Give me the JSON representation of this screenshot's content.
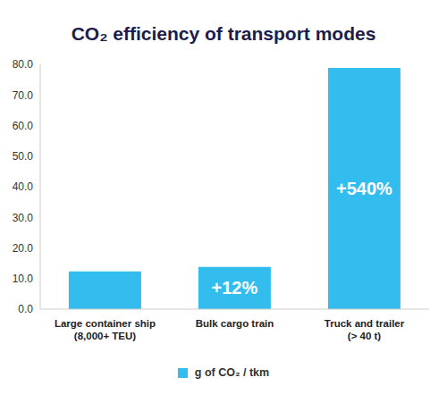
{
  "chart_data": {
    "type": "bar",
    "title": "CO₂ efficiency of transport modes",
    "categories": [
      "Large container ship (8,000+ TEU)",
      "Bulk cargo train",
      "Truck and trailer (> 40 t)"
    ],
    "series": [
      {
        "name": "g of CO₂ / tkm",
        "color": "#33bdef",
        "values": [
          12.3,
          13.8,
          78.8
        ]
      }
    ],
    "annotations": [
      null,
      "+12%",
      "+540%"
    ],
    "ylim": [
      0,
      80
    ],
    "yticks": [
      {
        "value": 0,
        "label": "0.0"
      },
      {
        "value": 10,
        "label": "10.0"
      },
      {
        "value": 20,
        "label": "20.0"
      },
      {
        "value": 30,
        "label": "30.0"
      },
      {
        "value": 40,
        "label": "40.0"
      },
      {
        "value": 50,
        "label": "50.0"
      },
      {
        "value": 60,
        "label": "60.0"
      },
      {
        "value": 70,
        "label": "70.0"
      },
      {
        "value": 80,
        "label": "80.0"
      }
    ],
    "grid": false,
    "legend": "bottom"
  }
}
